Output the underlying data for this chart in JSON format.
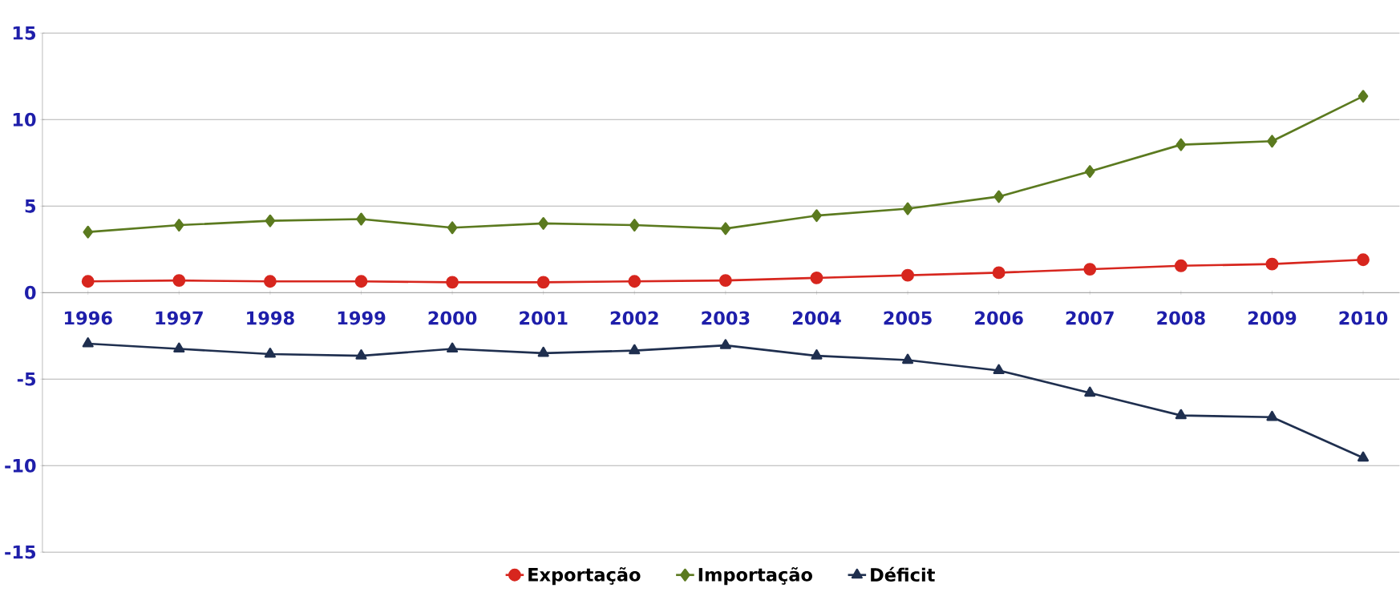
{
  "chart_data": {
    "type": "line",
    "categories": [
      "1996",
      "1997",
      "1998",
      "1999",
      "2000",
      "2001",
      "2002",
      "2003",
      "2004",
      "2005",
      "2006",
      "2007",
      "2008",
      "2009",
      "2010"
    ],
    "series": [
      {
        "name": "Exportação",
        "color": "#d7261e",
        "marker": "circle",
        "values": [
          0.65,
          0.7,
          0.65,
          0.65,
          0.6,
          0.6,
          0.65,
          0.7,
          0.85,
          1.0,
          1.15,
          1.35,
          1.55,
          1.65,
          1.9
        ]
      },
      {
        "name": "Importação",
        "color": "#5b7a1f",
        "marker": "diamond",
        "values": [
          3.5,
          3.9,
          4.15,
          4.25,
          3.75,
          4.0,
          3.9,
          3.7,
          4.45,
          4.85,
          5.55,
          7.0,
          8.55,
          8.75,
          11.35
        ]
      },
      {
        "name": "Déficit",
        "color": "#1f2f4f",
        "marker": "triangle",
        "values": [
          -2.95,
          -3.25,
          -3.55,
          -3.65,
          -3.25,
          -3.5,
          -3.35,
          -3.05,
          -3.65,
          -3.9,
          -4.5,
          -5.8,
          -7.1,
          -7.2,
          -9.55
        ]
      }
    ],
    "ylim": [
      -15,
      15
    ],
    "yticks": [
      -15,
      -10,
      -5,
      0,
      5,
      10,
      15
    ],
    "grid": "y",
    "legend": "bottom",
    "line_style": "solid"
  }
}
